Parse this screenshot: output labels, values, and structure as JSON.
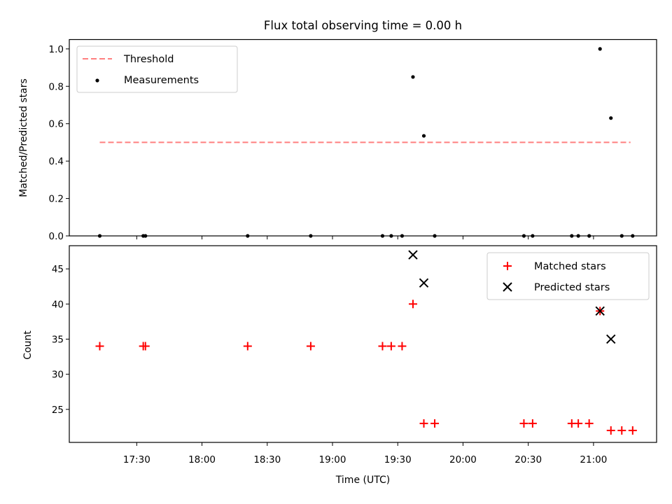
{
  "chart_data": [
    {
      "type": "scatter",
      "title": "Flux total observing time = 0.00 h",
      "xlabel": "",
      "ylabel": "Matched/Predicted stars",
      "ylim": [
        0.0,
        1.05
      ],
      "yticks": [
        0.0,
        0.2,
        0.4,
        0.6,
        0.8,
        1.0
      ],
      "yticklabels": [
        "0.0",
        "0.2",
        "0.4",
        "0.6",
        "0.8",
        "1.0"
      ],
      "grid": false,
      "legend_position": "top-left",
      "threshold": {
        "name": "Threshold",
        "value": 0.5,
        "x_start": "17:13",
        "x_end": "21:17",
        "color": "#ff7f7f",
        "style": "dashed"
      },
      "series": [
        {
          "name": "Measurements",
          "color": "#000000",
          "marker": "dot",
          "x": [
            "17:13",
            "17:33",
            "17:34",
            "18:21",
            "18:50",
            "19:23",
            "19:27",
            "19:32",
            "19:37",
            "19:42",
            "19:47",
            "20:28",
            "20:32",
            "20:50",
            "20:53",
            "20:58",
            "21:03",
            "21:08",
            "21:13",
            "21:18"
          ],
          "y": [
            0.0,
            0.0,
            0.0,
            0.0,
            0.0,
            0.0,
            0.0,
            0.0,
            0.85,
            0.535,
            0.0,
            0.0,
            0.0,
            0.0,
            0.0,
            0.0,
            1.0,
            0.63,
            0.0,
            0.0
          ]
        }
      ]
    },
    {
      "type": "scatter",
      "xlabel": "Time (UTC)",
      "ylabel": "Count",
      "ylim": [
        20.3,
        48.3
      ],
      "yticks": [
        25,
        30,
        35,
        40,
        45
      ],
      "yticklabels": [
        "25",
        "30",
        "35",
        "40",
        "45"
      ],
      "xticks": [
        "17:30",
        "18:00",
        "18:30",
        "19:00",
        "19:30",
        "20:00",
        "20:30",
        "21:00"
      ],
      "xlim": [
        "16:59",
        "21:29"
      ],
      "grid": false,
      "legend_position": "top-right",
      "series": [
        {
          "name": "Matched stars",
          "color": "#ff0000",
          "marker": "plus",
          "x": [
            "17:13",
            "17:33",
            "17:34",
            "18:21",
            "18:50",
            "19:23",
            "19:27",
            "19:32",
            "19:37",
            "19:42",
            "19:47",
            "20:28",
            "20:32",
            "20:50",
            "20:53",
            "20:58",
            "21:03",
            "21:08",
            "21:13",
            "21:18"
          ],
          "y": [
            34,
            34,
            34,
            34,
            34,
            34,
            34,
            34,
            40,
            23,
            23,
            23,
            23,
            23,
            23,
            23,
            39,
            22,
            22,
            22
          ]
        },
        {
          "name": "Predicted stars",
          "color": "#000000",
          "marker": "x",
          "x": [
            "19:37",
            "19:42",
            "21:03",
            "21:08"
          ],
          "y": [
            47,
            43,
            39,
            35
          ]
        }
      ]
    }
  ]
}
